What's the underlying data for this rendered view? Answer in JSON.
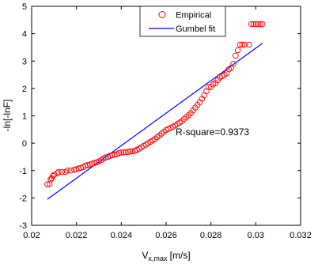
{
  "chart_data": {
    "type": "scatter",
    "xlim": [
      0.02,
      0.032
    ],
    "ylim": [
      -3,
      5
    ],
    "x_ticks": [
      "0.02",
      "0.022",
      "0.024",
      "0.026",
      "0.028",
      "0.03",
      "0.032"
    ],
    "y_ticks": [
      "-3",
      "-2",
      "-1",
      "0",
      "1",
      "2",
      "3",
      "4",
      "5"
    ],
    "xlabel_main": "V",
    "xlabel_sub": "x,max",
    "xlabel_unit": " [m/s]",
    "ylabel": "-ln[-lnF]",
    "grid": false,
    "legend_position": "top-center",
    "annotation": "R-square=0.9373",
    "series": [
      {
        "name": "Empirical",
        "kind": "markers",
        "marker": "circle",
        "color": "#ff0000",
        "points": [
          [
            0.0207,
            -1.5
          ],
          [
            0.0208,
            -1.5
          ],
          [
            0.02085,
            -1.32
          ],
          [
            0.0209,
            -1.28
          ],
          [
            0.02095,
            -1.2
          ],
          [
            0.021,
            -1.15
          ],
          [
            0.02115,
            -1.1
          ],
          [
            0.0212,
            -1.05
          ],
          [
            0.02135,
            -1.05
          ],
          [
            0.0215,
            -1.05
          ],
          [
            0.0216,
            -1.0
          ],
          [
            0.02175,
            -1.0
          ],
          [
            0.0219,
            -0.97
          ],
          [
            0.022,
            -0.95
          ],
          [
            0.0221,
            -0.92
          ],
          [
            0.0222,
            -0.9
          ],
          [
            0.0223,
            -0.87
          ],
          [
            0.0224,
            -0.82
          ],
          [
            0.0225,
            -0.8
          ],
          [
            0.0226,
            -0.78
          ],
          [
            0.0227,
            -0.75
          ],
          [
            0.0228,
            -0.72
          ],
          [
            0.0229,
            -0.7
          ],
          [
            0.023,
            -0.66
          ],
          [
            0.0231,
            -0.62
          ],
          [
            0.0232,
            -0.56
          ],
          [
            0.0233,
            -0.52
          ],
          [
            0.0234,
            -0.5
          ],
          [
            0.0235,
            -0.46
          ],
          [
            0.0236,
            -0.44
          ],
          [
            0.0237,
            -0.42
          ],
          [
            0.0238,
            -0.4
          ],
          [
            0.0239,
            -0.36
          ],
          [
            0.024,
            -0.34
          ],
          [
            0.0241,
            -0.34
          ],
          [
            0.0242,
            -0.33
          ],
          [
            0.0243,
            -0.33
          ],
          [
            0.0244,
            -0.3
          ],
          [
            0.0245,
            -0.3
          ],
          [
            0.0246,
            -0.28
          ],
          [
            0.0247,
            -0.24
          ],
          [
            0.0248,
            -0.2
          ],
          [
            0.0249,
            -0.15
          ],
          [
            0.025,
            -0.1
          ],
          [
            0.0251,
            -0.05
          ],
          [
            0.0252,
            0.0
          ],
          [
            0.0253,
            0.05
          ],
          [
            0.0254,
            0.1
          ],
          [
            0.0255,
            0.15
          ],
          [
            0.0256,
            0.22
          ],
          [
            0.0257,
            0.28
          ],
          [
            0.0258,
            0.35
          ],
          [
            0.0259,
            0.42
          ],
          [
            0.026,
            0.48
          ],
          [
            0.0261,
            0.52
          ],
          [
            0.0262,
            0.56
          ],
          [
            0.0263,
            0.6
          ],
          [
            0.0264,
            0.65
          ],
          [
            0.0265,
            0.7
          ],
          [
            0.0266,
            0.75
          ],
          [
            0.0267,
            0.8
          ],
          [
            0.0268,
            0.88
          ],
          [
            0.0269,
            0.95
          ],
          [
            0.027,
            1.02
          ],
          [
            0.0271,
            1.1
          ],
          [
            0.0272,
            1.2
          ],
          [
            0.0273,
            1.3
          ],
          [
            0.0274,
            1.4
          ],
          [
            0.0275,
            1.5
          ],
          [
            0.0276,
            1.62
          ],
          [
            0.0277,
            1.75
          ],
          [
            0.0278,
            1.9
          ],
          [
            0.0279,
            2.05
          ],
          [
            0.028,
            2.05
          ],
          [
            0.0281,
            2.15
          ],
          [
            0.0282,
            2.2
          ],
          [
            0.0283,
            2.3
          ],
          [
            0.0284,
            2.4
          ],
          [
            0.0285,
            2.45
          ],
          [
            0.0286,
            2.5
          ],
          [
            0.0287,
            2.55
          ],
          [
            0.0288,
            2.7
          ],
          [
            0.0289,
            2.75
          ],
          [
            0.029,
            2.9
          ],
          [
            0.0291,
            3.2
          ],
          [
            0.0292,
            3.4
          ],
          [
            0.0293,
            3.6
          ],
          [
            0.0294,
            3.6
          ],
          [
            0.0295,
            3.6
          ],
          [
            0.0297,
            3.6
          ],
          [
            0.0298,
            4.35
          ],
          [
            0.0299,
            4.35
          ],
          [
            0.03,
            4.35
          ],
          [
            0.0301,
            4.35
          ],
          [
            0.0302,
            4.35
          ],
          [
            0.0303,
            4.35
          ]
        ]
      },
      {
        "name": "Gumbel fit",
        "kind": "line",
        "color": "#0000ff",
        "points": [
          [
            0.0207,
            -2.05
          ],
          [
            0.0303,
            3.65
          ]
        ]
      }
    ]
  }
}
